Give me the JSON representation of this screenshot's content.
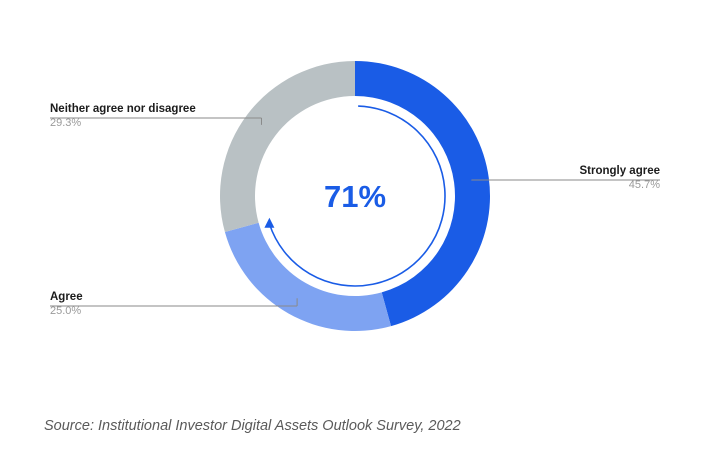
{
  "chart_data": {
    "type": "pie",
    "donut": true,
    "categories": [
      "Strongly agree",
      "Agree",
      "Neither agree nor disagree"
    ],
    "values": [
      45.7,
      25.0,
      29.3
    ],
    "value_labels": [
      "45.7%",
      "25.0%",
      "29.3%"
    ],
    "colors": [
      "#1a5ce6",
      "#7ea3f2",
      "#b9c1c4"
    ],
    "center_text": "71%",
    "center_color": "#1a5ce6",
    "start_angle_deg": 0,
    "direction": "clockwise",
    "circular_arrow": true,
    "legend": "callout labels beside slices",
    "source": "Source: Institutional Investor Digital Assets Outlook Survey, 2022"
  }
}
